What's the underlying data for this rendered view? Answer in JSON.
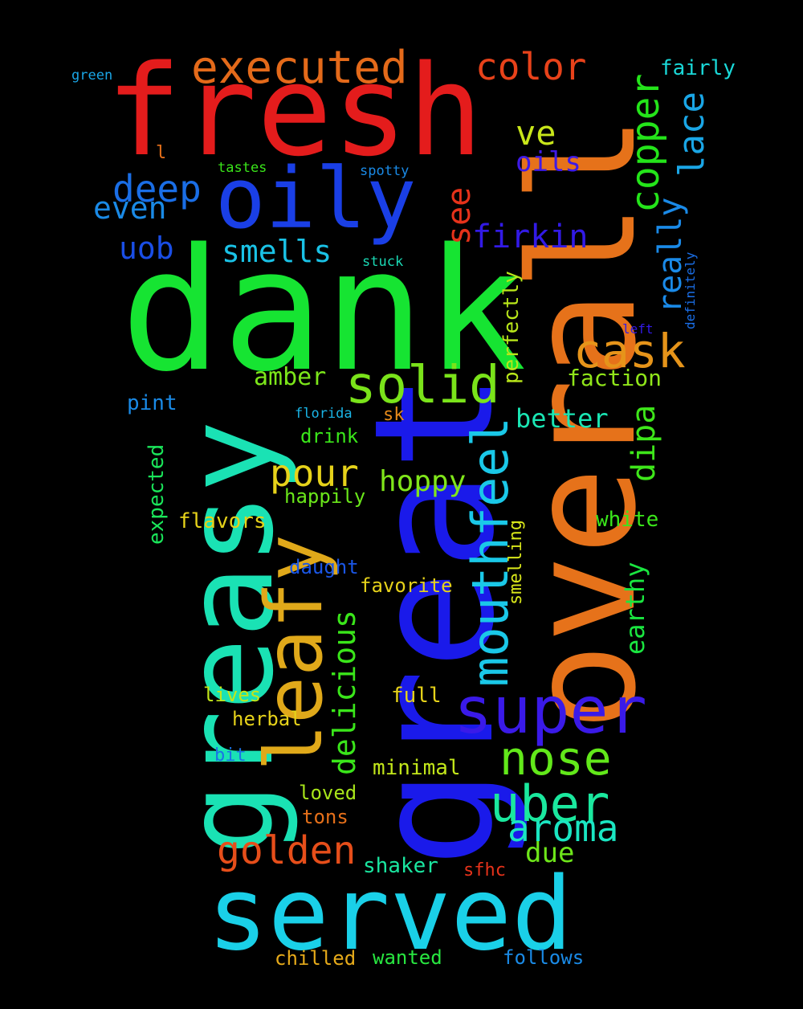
{
  "background_color": "#000000",
  "words": [
    {
      "text": "dank",
      "color": "#16e432"
    },
    {
      "text": "great",
      "color": "#1a1aea"
    },
    {
      "text": "overall",
      "color": "#e6721a"
    },
    {
      "text": "greasy",
      "color": "#1ae2b4"
    },
    {
      "text": "fresh",
      "color": "#e41c1c"
    },
    {
      "text": "served",
      "color": "#1ad0e8"
    },
    {
      "text": "oily",
      "color": "#1a3fe6"
    },
    {
      "text": "leafy",
      "color": "#e0a91a"
    },
    {
      "text": "super",
      "color": "#3a1ae8"
    },
    {
      "text": "mouthfeel",
      "color": "#1ac8e8"
    },
    {
      "text": "solid",
      "color": "#7ae31a"
    },
    {
      "text": "executed",
      "color": "#e46a1a"
    },
    {
      "text": "nose",
      "color": "#62e81a"
    },
    {
      "text": "uber",
      "color": "#1ae89e"
    },
    {
      "text": "color",
      "color": "#e8421a"
    },
    {
      "text": "cask",
      "color": "#e6941a"
    },
    {
      "text": "golden",
      "color": "#e64e1a"
    },
    {
      "text": "aroma",
      "color": "#1ae6c2"
    },
    {
      "text": "copper",
      "color": "#24e41a"
    },
    {
      "text": "deep",
      "color": "#1a6ee6"
    },
    {
      "text": "pour",
      "color": "#e6d21a"
    },
    {
      "text": "lace",
      "color": "#1aa6e6"
    },
    {
      "text": "firkin",
      "color": "#321ae6"
    },
    {
      "text": "delicious",
      "color": "#3ae61a"
    },
    {
      "text": "really",
      "color": "#1a8ae8"
    },
    {
      "text": "dipa",
      "color": "#3ee61a"
    },
    {
      "text": "smells",
      "color": "#1ac2e6"
    },
    {
      "text": "hoppy",
      "color": "#80e61a"
    },
    {
      "text": "ve",
      "color": "#c8e61a"
    },
    {
      "text": "see",
      "color": "#e6321a"
    },
    {
      "text": "even",
      "color": "#1a8ae6"
    },
    {
      "text": "uob",
      "color": "#1a4ee6"
    },
    {
      "text": "better",
      "color": "#1ae6b4"
    },
    {
      "text": "amber",
      "color": "#7ce61a"
    },
    {
      "text": "earthy",
      "color": "#1ae640"
    },
    {
      "text": "oils",
      "color": "#3e1ae6"
    },
    {
      "text": "due",
      "color": "#6ee61a"
    },
    {
      "text": "faction",
      "color": "#90e61a"
    },
    {
      "text": "perfectly",
      "color": "#b8e61a"
    },
    {
      "text": "expected",
      "color": "#1ae65a"
    },
    {
      "text": "fairly",
      "color": "#1ad8d8"
    },
    {
      "text": "shaker",
      "color": "#1ae6a0"
    },
    {
      "text": "minimal",
      "color": "#c2e61a"
    },
    {
      "text": "flavors",
      "color": "#e6d21a"
    },
    {
      "text": "white",
      "color": "#3ae61a"
    },
    {
      "text": "full",
      "color": "#e6d21a"
    },
    {
      "text": "pint",
      "color": "#1a8ae6"
    },
    {
      "text": "happily",
      "color": "#6ae61a"
    },
    {
      "text": "herbal",
      "color": "#e6d21a"
    },
    {
      "text": "follows",
      "color": "#1a8ae6"
    },
    {
      "text": "wanted",
      "color": "#28e640"
    },
    {
      "text": "chilled",
      "color": "#e6aa1a"
    },
    {
      "text": "favorite",
      "color": "#e6d21a"
    },
    {
      "text": "loved",
      "color": "#a8e61a"
    },
    {
      "text": "lives",
      "color": "#c2e61a"
    },
    {
      "text": "daught",
      "color": "#1a56e6"
    },
    {
      "text": "tons",
      "color": "#e6701a"
    },
    {
      "text": "drink",
      "color": "#3ae61a"
    },
    {
      "text": "sfhc",
      "color": "#e6321a"
    },
    {
      "text": "smelling",
      "color": "#d8e61a"
    },
    {
      "text": "bit",
      "color": "#1a72e6"
    },
    {
      "text": "sk",
      "color": "#e68a1a"
    },
    {
      "text": "l",
      "color": "#e6701a"
    },
    {
      "text": "florida",
      "color": "#1ab4e6"
    },
    {
      "text": "spotty",
      "color": "#1a8ae6"
    },
    {
      "text": "stuck",
      "color": "#1ad8b4"
    },
    {
      "text": "tastes",
      "color": "#3ae61a"
    },
    {
      "text": "green",
      "color": "#1aa6e6"
    },
    {
      "text": "left",
      "color": "#321ae6"
    },
    {
      "text": "definitely",
      "color": "#1a6ee6"
    }
  ]
}
